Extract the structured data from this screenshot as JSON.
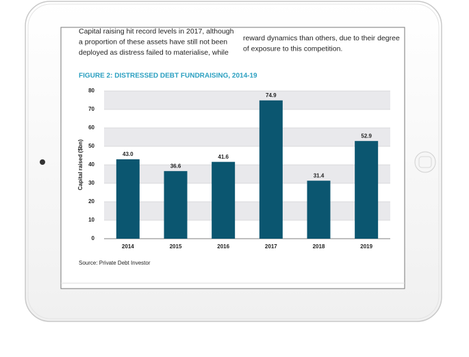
{
  "page_text": {
    "left_column": [
      "Capital raising hit record levels in 2017, although",
      "a proportion of these assets have still not been",
      "deployed as distress failed to materialise, while"
    ],
    "right_column": [
      "reward dynamics than others, due to their degree",
      "of exposure to this competition."
    ]
  },
  "chart_data": {
    "type": "bar",
    "title": "FIGURE 2: DISTRESSED DEBT FUNDRAISING, 2014-19",
    "y_label": "Capital raised ($bn)",
    "source": "Source: Private Debt Investor",
    "categories": [
      "2014",
      "2015",
      "2016",
      "2017",
      "2018",
      "2019"
    ],
    "values": [
      43.0,
      36.6,
      41.6,
      74.9,
      31.4,
      52.9
    ],
    "value_labels": [
      "43.0",
      "36.6",
      "41.6",
      "74.9",
      "31.4",
      "52.9"
    ],
    "color": "#0b5670",
    "ylim": [
      0,
      80
    ],
    "yticks": [
      0,
      10,
      20,
      30,
      40,
      50,
      60,
      70,
      80
    ],
    "grid": "banded"
  }
}
